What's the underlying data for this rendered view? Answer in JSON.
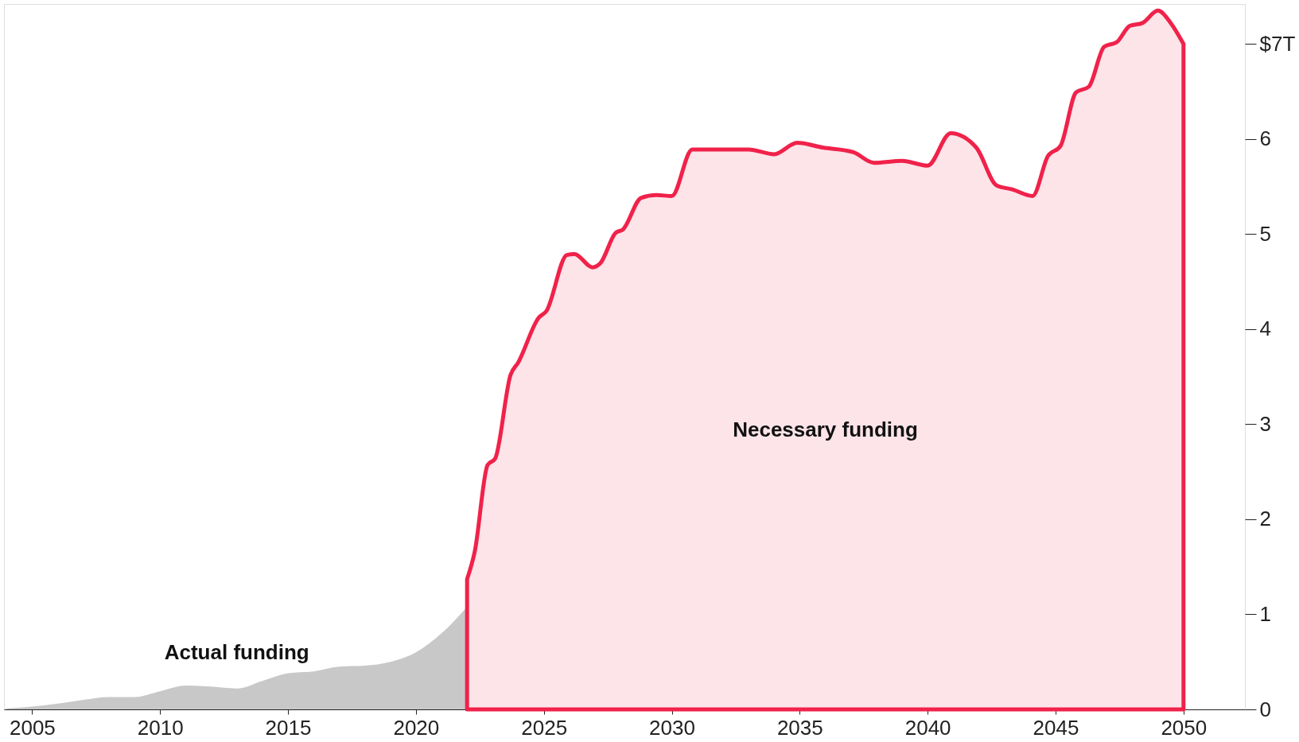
{
  "chart_data": {
    "type": "area",
    "xlim": [
      2003.9,
      2052.4
    ],
    "ylim": [
      0,
      7.42
    ],
    "xticks": [
      2005,
      2010,
      2015,
      2020,
      2025,
      2030,
      2035,
      2040,
      2045,
      2050
    ],
    "yticks": [
      0,
      1,
      2,
      3,
      4,
      5,
      6,
      {
        "value": 7,
        "label": "$7T"
      }
    ],
    "grid": false,
    "legend": false,
    "series": [
      {
        "name": "Actual funding",
        "color": "#c8c8c8",
        "x": [
          2004,
          2005,
          2006,
          2007,
          2008,
          2009,
          2010,
          2011,
          2012,
          2013,
          2014,
          2015,
          2016,
          2017,
          2018,
          2019,
          2020,
          2021,
          2022
        ],
        "values": [
          0.01,
          0.03,
          0.06,
          0.1,
          0.13,
          0.13,
          0.19,
          0.25,
          0.24,
          0.22,
          0.3,
          0.38,
          0.4,
          0.45,
          0.46,
          0.5,
          0.6,
          0.8,
          1.08
        ]
      },
      {
        "name": "Necessary funding",
        "color": "#f0224a",
        "x": [
          2022,
          2022.3,
          2022.8,
          2023.1,
          2023.7,
          2024.0,
          2024.8,
          2025.1,
          2025.9,
          2026.2,
          2026.9,
          2027.2,
          2027.8,
          2028.1,
          2028.8,
          2029.4,
          2030.0,
          2030.8,
          2033.0,
          2034.0,
          2034.9,
          2035.9,
          2037.1,
          2037.9,
          2039.0,
          2040.0,
          2040.9,
          2041.9,
          2042.7,
          2043.3,
          2044.1,
          2044.7,
          2045.2,
          2045.8,
          2046.3,
          2046.9,
          2047.4,
          2047.9,
          2048.4,
          2049.0,
          2049.5,
          2050.0
        ],
        "values": [
          1.37,
          1.66,
          2.57,
          2.64,
          3.52,
          3.65,
          4.12,
          4.19,
          4.78,
          4.79,
          4.65,
          4.69,
          5.01,
          5.05,
          5.38,
          5.41,
          5.4,
          5.89,
          5.89,
          5.84,
          5.96,
          5.91,
          5.86,
          5.75,
          5.77,
          5.72,
          6.06,
          5.91,
          5.51,
          5.47,
          5.4,
          5.82,
          5.93,
          6.49,
          6.55,
          6.97,
          7.02,
          7.19,
          7.22,
          7.35,
          7.22,
          7.0
        ]
      }
    ]
  }
}
